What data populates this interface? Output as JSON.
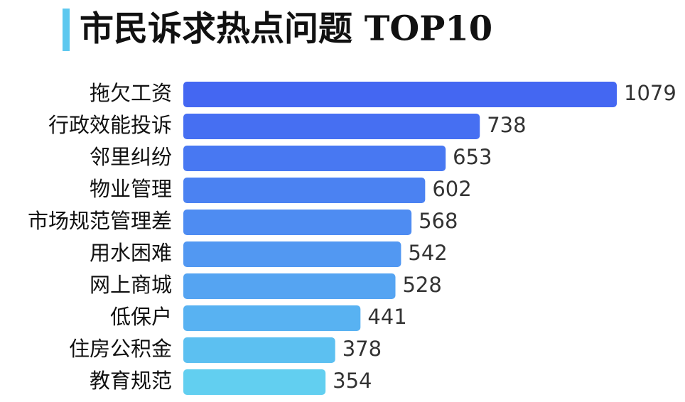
{
  "chart_data": {
    "type": "bar",
    "orientation": "horizontal",
    "title": "市民诉求热点问题 TOP10",
    "categories": [
      "拖欠工资",
      "行政效能投诉",
      "邻里纠纷",
      "物业管理",
      "市场规范管理差",
      "用水困难",
      "网上商城",
      "低保户",
      "住房公积金",
      "教育规范"
    ],
    "values": [
      1079,
      738,
      653,
      602,
      568,
      542,
      528,
      441,
      378,
      354
    ],
    "colors": [
      "#4467f2",
      "#466ff2",
      "#4878f2",
      "#4b82f2",
      "#4e8cf2",
      "#5298f2",
      "#55a4f2",
      "#58b2f2",
      "#5cc0f1",
      "#62cff0"
    ],
    "accent_color": "#5ec8ef"
  }
}
